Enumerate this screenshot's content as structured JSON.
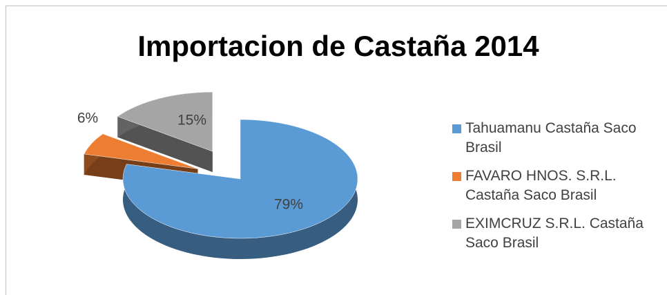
{
  "chart_data": {
    "type": "pie",
    "title": "Importacion de Castaña 2014",
    "categories": [
      "Tahuamanu Castaña Saco Brasil",
      "FAVARO HNOS. S.R.L. Castaña Saco Brasil",
      "EXIMCRUZ S.R.L. Castaña Saco Brasil"
    ],
    "values": [
      79,
      6,
      15
    ],
    "value_labels": [
      "79%",
      "6%",
      "15%"
    ],
    "colors": [
      "#5b9bd5",
      "#ed7d31",
      "#a5a5a5"
    ],
    "legend": "right"
  }
}
